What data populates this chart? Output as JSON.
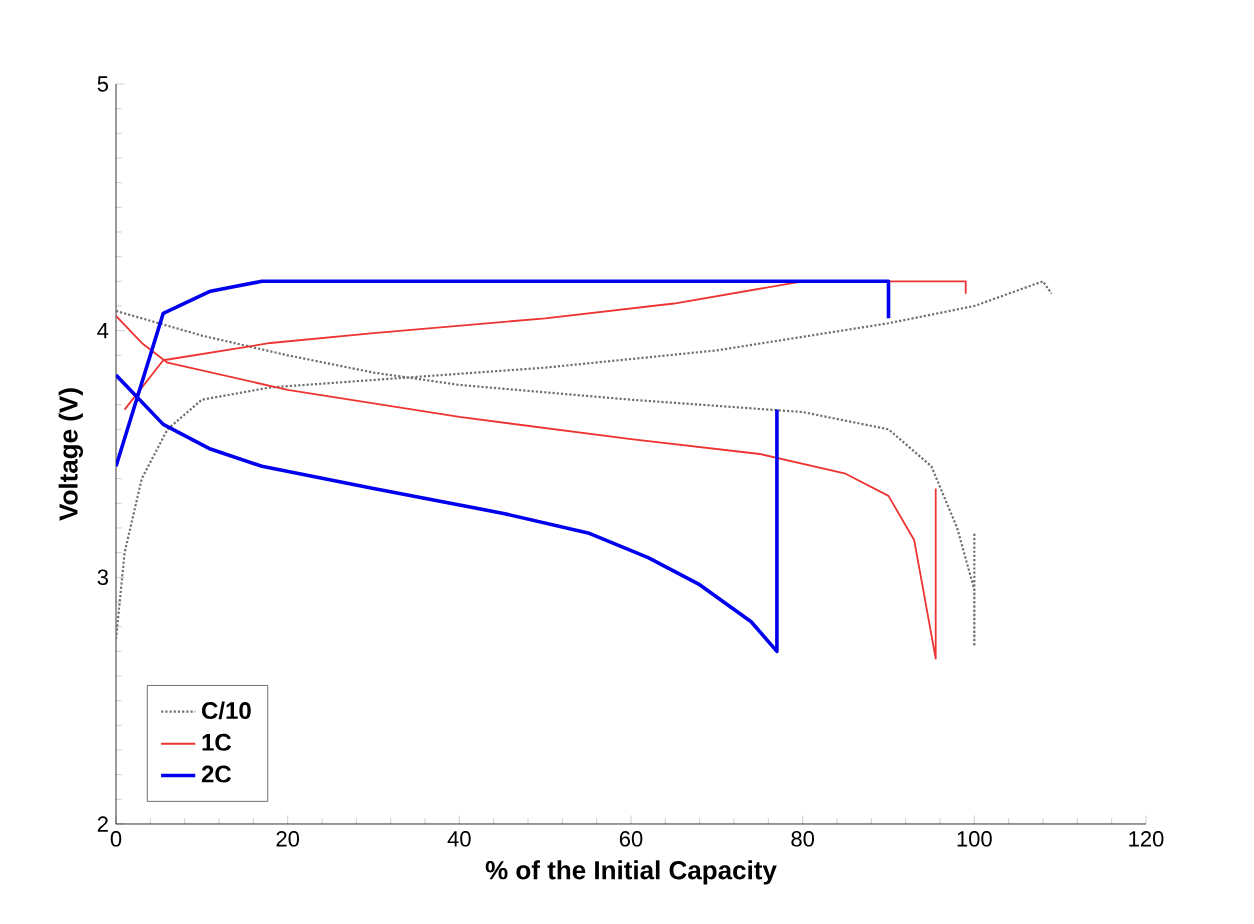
{
  "chart_data": {
    "type": "line",
    "xlabel": "% of the Initial Capacity",
    "ylabel": "Voltage (V)",
    "xlim": [
      0,
      120
    ],
    "ylim": [
      2,
      5
    ],
    "xticks": [
      0,
      20,
      40,
      60,
      80,
      100,
      120
    ],
    "yticks": [
      2,
      3,
      4,
      5
    ],
    "legend": "bottom left",
    "grid": false,
    "series": [
      {
        "name": "C/10",
        "color": "#707070",
        "line_style": "dotted",
        "x": [
          0,
          1,
          3,
          6,
          10,
          18,
          30,
          50,
          70,
          90,
          100,
          108,
          109,
          null,
          0,
          10,
          20,
          30,
          40,
          60,
          80,
          90,
          95,
          98,
          100,
          100,
          100
        ],
        "values": [
          2.75,
          3.1,
          3.4,
          3.6,
          3.72,
          3.77,
          3.8,
          3.85,
          3.92,
          4.03,
          4.1,
          4.2,
          4.15,
          null,
          4.08,
          3.98,
          3.9,
          3.83,
          3.78,
          3.72,
          3.67,
          3.6,
          3.45,
          3.2,
          2.95,
          2.72,
          3.18
        ]
      },
      {
        "name": "1C",
        "color": "#ee3333",
        "line_style": "solid",
        "x": [
          1,
          5.5,
          18,
          30,
          50,
          65,
          80,
          99,
          99,
          null,
          0,
          3,
          6,
          20,
          40,
          60,
          75,
          85,
          90,
          93,
          95.5,
          95.5
        ],
        "values": [
          3.68,
          3.88,
          3.95,
          3.99,
          4.05,
          4.11,
          4.2,
          4.2,
          4.15,
          null,
          4.06,
          3.95,
          3.87,
          3.76,
          3.65,
          3.56,
          3.5,
          3.42,
          3.33,
          3.15,
          2.67,
          3.36
        ]
      },
      {
        "name": "2C",
        "color": "#0000ee",
        "line_style": "solid",
        "x": [
          0,
          5.5,
          11,
          17,
          90,
          90,
          null,
          0,
          5.5,
          11,
          17,
          30,
          45,
          55,
          62,
          68,
          74,
          77,
          77
        ],
        "values": [
          3.45,
          4.07,
          4.16,
          4.2,
          4.2,
          4.05,
          null,
          3.82,
          3.62,
          3.52,
          3.45,
          3.36,
          3.26,
          3.18,
          3.08,
          2.97,
          2.82,
          2.7,
          3.68
        ]
      }
    ]
  }
}
